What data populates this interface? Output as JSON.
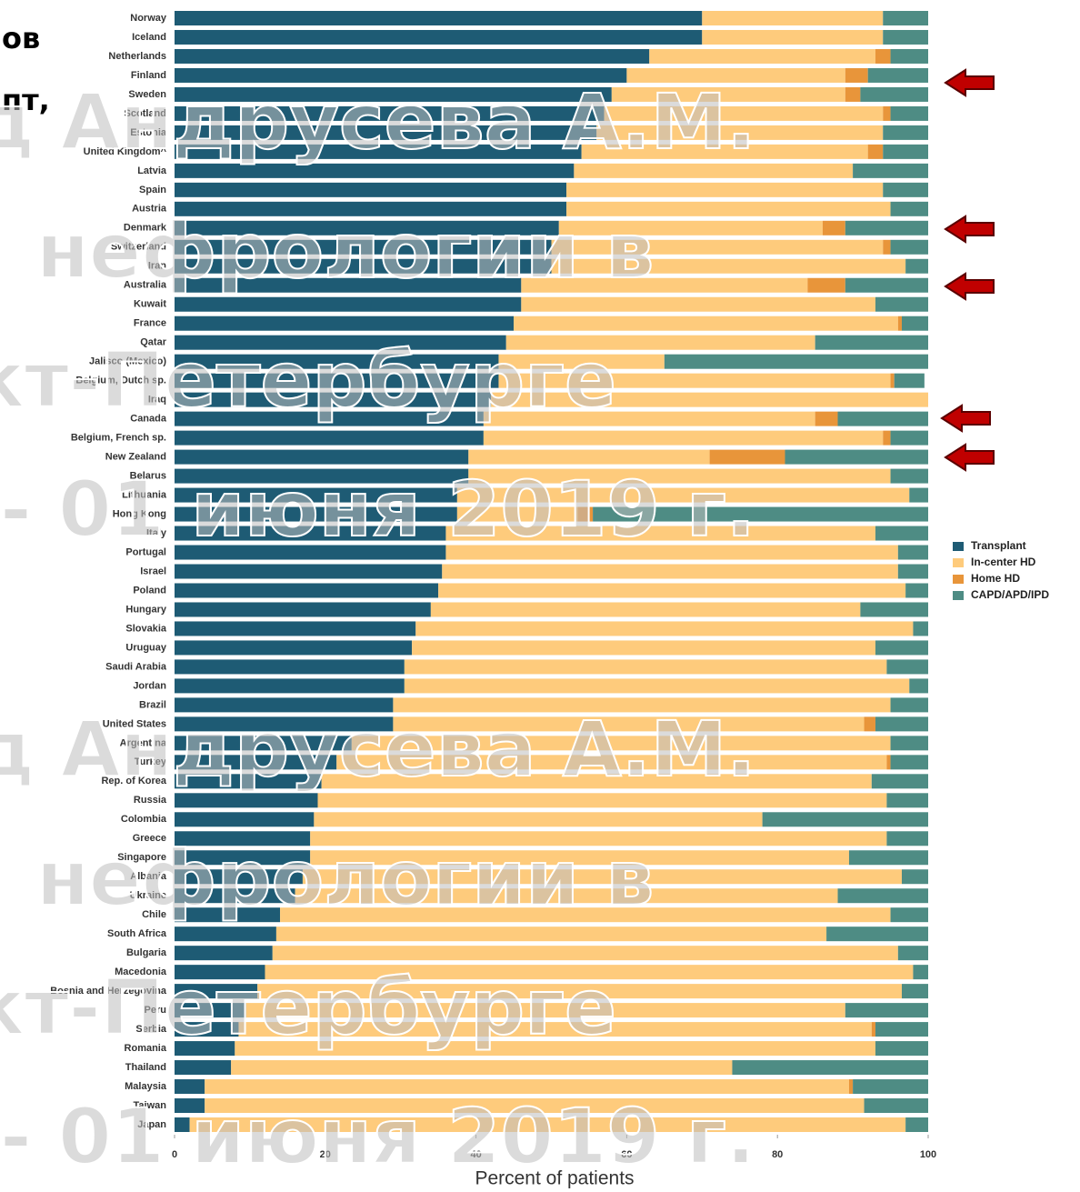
{
  "header_fragments": [
    "ов",
    "пт,"
  ],
  "watermark": [
    "д Андрусева А.М.",
    "нефрологии в",
    "кт-Петербурге",
    "- 01 июня 2019 г."
  ],
  "chart_data": {
    "type": "bar",
    "orientation": "horizontal",
    "stacked": true,
    "xlabel": "Percent of patients",
    "xlim": [
      0,
      100
    ],
    "xticks": [
      0,
      20,
      40,
      60,
      80,
      100
    ],
    "legend": "right",
    "categories": [
      "Norway",
      "Iceland",
      "Netherlands",
      "Finland",
      "Sweden",
      "Scotland",
      "Estonia",
      "United Kingdom^",
      "Latvia",
      "Spain",
      "Austria",
      "Denmark",
      "Switzerland",
      "Iran",
      "Australia",
      "Kuwait",
      "France",
      "Qatar",
      "Jalisco (Mexico)",
      "Belgium, Dutch sp.",
      "Iraq",
      "Canada",
      "Belgium, French sp.",
      "New Zealand",
      "Belarus",
      "Lithuania",
      "Hong Kong",
      "Italy",
      "Portugal",
      "Israel",
      "Poland",
      "Hungary",
      "Slovakia",
      "Uruguay",
      "Saudi Arabia",
      "Jordan",
      "Brazil",
      "United States",
      "Argentina",
      "Turkey",
      "Rep. of Korea",
      "Russia",
      "Colombia",
      "Greece",
      "Singapore",
      "Albania",
      "Ukraine",
      "Chile",
      "South Africa",
      "Bulgaria",
      "Macedonia",
      "Bosnia and Herzegovina",
      "Peru",
      "Serbia",
      "Romania",
      "Thailand",
      "Malaysia",
      "Taiwan",
      "Japan"
    ],
    "series": [
      {
        "name": "Transplant",
        "color": "#1e5b74",
        "values": [
          70,
          70,
          63,
          60,
          58,
          57,
          56,
          54,
          53,
          52,
          52,
          51,
          50,
          50,
          46,
          46,
          45,
          44,
          43,
          43,
          42,
          41,
          41,
          39,
          39,
          37.5,
          37.5,
          36,
          36,
          35.5,
          35,
          34,
          32,
          31.5,
          30.5,
          30.5,
          29,
          29,
          23.5,
          21.5,
          19.5,
          19,
          18.5,
          18,
          18,
          17,
          16,
          14,
          13.5,
          13,
          12,
          11,
          9.5,
          8.5,
          8,
          7.5,
          4,
          4,
          2
        ]
      },
      {
        "name": "In-center HD",
        "color": "#fecb7c",
        "values": [
          24,
          24,
          30,
          29,
          31,
          37,
          38,
          38,
          37,
          42,
          43,
          35,
          44,
          47,
          38,
          47,
          51,
          41,
          22,
          52,
          58,
          44,
          53,
          32,
          56,
          60,
          16,
          57,
          60,
          60.5,
          62,
          57,
          66,
          61.5,
          64,
          67,
          66,
          62.5,
          71.5,
          73,
          73,
          75.5,
          59.5,
          76.5,
          71.5,
          79.5,
          72,
          81,
          73,
          83,
          86,
          85.5,
          79.5,
          84,
          85,
          66.5,
          85.5,
          87.5,
          95
        ]
      },
      {
        "name": "Home HD",
        "color": "#e8953a",
        "values": [
          0,
          0,
          2,
          3,
          2,
          1,
          0,
          2,
          0,
          0,
          0,
          3,
          1,
          0,
          5,
          0,
          0.5,
          0,
          0,
          0.5,
          0,
          3,
          1,
          10,
          0,
          0,
          2,
          0,
          0,
          0,
          0,
          0,
          0,
          0,
          0,
          0,
          0,
          1.5,
          0,
          0.5,
          0,
          0,
          0,
          0,
          0,
          0,
          0,
          0,
          0,
          0,
          0,
          0,
          0,
          0.5,
          0,
          0,
          0.5,
          0,
          0
        ]
      },
      {
        "name": "CAPD/APD/IPD",
        "color": "#4e8c84",
        "values": [
          6,
          6,
          5,
          8,
          9,
          5,
          6,
          6,
          10,
          6,
          5,
          11,
          5,
          3,
          11,
          7,
          3.5,
          15,
          35,
          4,
          0,
          12,
          5,
          19,
          5,
          2.5,
          44.5,
          7,
          4,
          4,
          3,
          9,
          2,
          7,
          5.5,
          2.5,
          5,
          7,
          5,
          5,
          7.5,
          5.5,
          22,
          5.5,
          10.5,
          3.5,
          12,
          5,
          13.5,
          4,
          2,
          3.5,
          11,
          7,
          7,
          26,
          10,
          8.5,
          3
        ]
      }
    ]
  }
}
